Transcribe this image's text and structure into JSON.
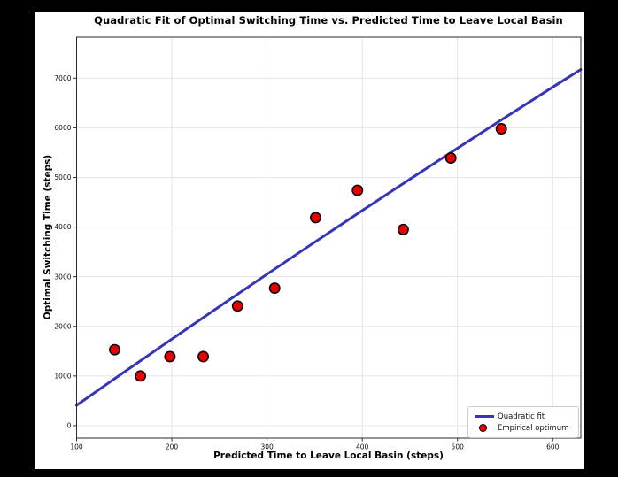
{
  "page": {
    "background": "#000000",
    "figure_background": "#ffffff"
  },
  "chart_data": {
    "type": "scatter",
    "title": "Quadratic Fit of Optimal Switching Time vs. Predicted Time to Leave Local Basin",
    "xlabel": "Predicted Time to Leave Local Basin (steps)",
    "ylabel": "Optimal Switching Time (steps)",
    "xlim": [
      100,
      629.5
    ],
    "ylim": [
      -250,
      7825
    ],
    "xticks": [
      100,
      200,
      300,
      400,
      500,
      600
    ],
    "yticks": [
      0,
      1000,
      2000,
      3000,
      4000,
      5000,
      6000,
      7000
    ],
    "grid": true,
    "colors": {
      "fit_line": "#3535b5",
      "marker_fill": "#e60000",
      "marker_edge": "#000000",
      "grid": "#e4e4e4",
      "spine": "#2b2b2b",
      "tick_text": "#111111"
    },
    "legend": {
      "position": "lower right",
      "entries": [
        {
          "label": "Quadratic fit",
          "type": "line",
          "color": "#3535b5"
        },
        {
          "label": "Empirical optimum",
          "type": "marker",
          "color": "#e60000",
          "edge": "#000000"
        }
      ]
    },
    "series": [
      {
        "name": "Empirical optimum",
        "type": "scatter",
        "color": "#e60000",
        "edge_color": "#000000",
        "points": [
          [
            140,
            1530
          ],
          [
            167,
            1000
          ],
          [
            198,
            1390
          ],
          [
            233,
            1390
          ],
          [
            269,
            2410
          ],
          [
            308,
            2770
          ],
          [
            351,
            4190
          ],
          [
            395,
            4740
          ],
          [
            443,
            3950
          ],
          [
            493,
            5390
          ],
          [
            546,
            5980
          ]
        ]
      },
      {
        "name": "Quadratic fit",
        "type": "line",
        "color": "#3535b5",
        "points": [
          [
            100,
            410
          ],
          [
            150,
            1080
          ],
          [
            200,
            1743
          ],
          [
            250,
            2400
          ],
          [
            300,
            3051
          ],
          [
            350,
            3695
          ],
          [
            400,
            4333
          ],
          [
            450,
            4964
          ],
          [
            500,
            5588
          ],
          [
            550,
            6207
          ],
          [
            600,
            6819
          ],
          [
            629.5,
            7175
          ]
        ]
      }
    ]
  }
}
